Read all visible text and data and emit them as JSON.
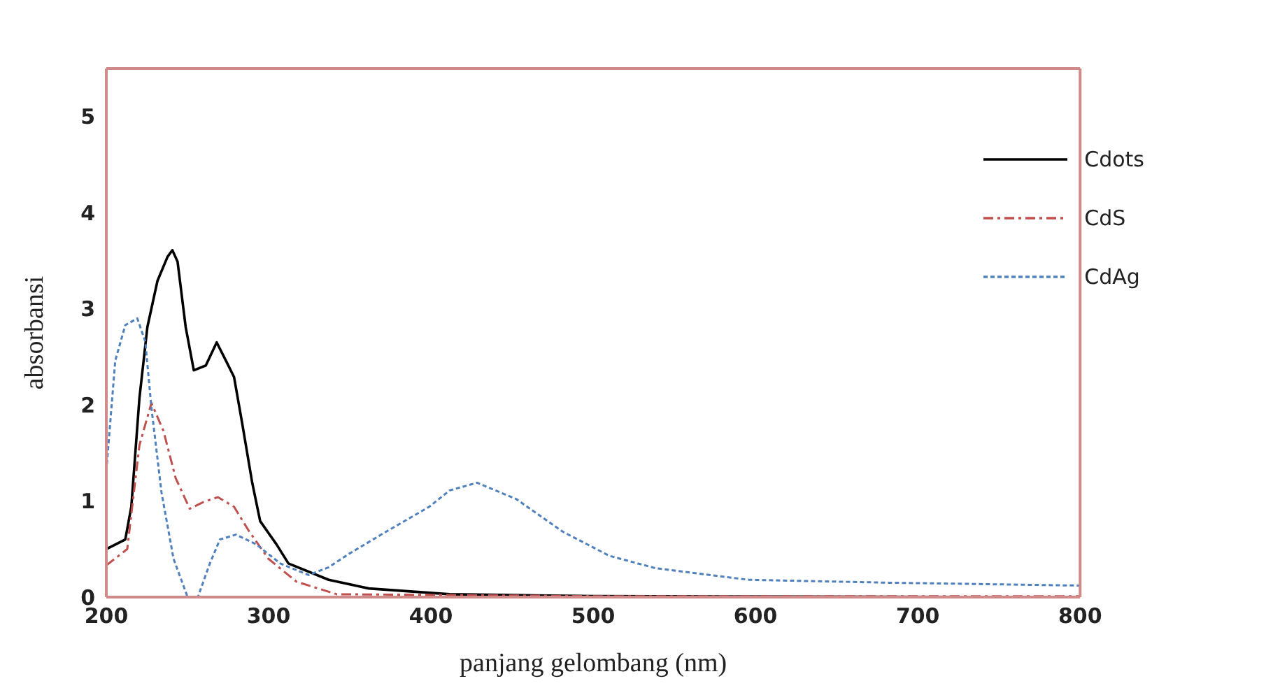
{
  "chart_data": {
    "type": "line",
    "xlabel": "panjang gelombang (nm)",
    "ylabel": "absorbansi",
    "xlim": [
      200,
      800
    ],
    "xticks": [
      200,
      300,
      400,
      500,
      600,
      700,
      800
    ],
    "ylim": [
      0,
      5.5
    ],
    "yticks": [
      0,
      1,
      2,
      3,
      4,
      5
    ],
    "legend": "top right",
    "marker": "none",
    "series": [
      {
        "name": "Cdots",
        "color": "#000000",
        "line_style": "solid",
        "x": [
          200,
          211.7,
          215.4,
          220.4,
          225.3,
          231.5,
          237.7,
          240.7,
          243.9,
          248.9,
          253.9,
          261.3,
          268,
          273.7,
          278.7,
          283.6,
          289.9,
          294.8,
          304.8,
          312.2,
          337,
          361.7,
          411.5,
          500,
          800
        ],
        "values": [
          0.5,
          0.6,
          0.94,
          2.07,
          2.81,
          3.29,
          3.54,
          3.61,
          3.49,
          2.81,
          2.36,
          2.41,
          2.65,
          2.46,
          2.29,
          1.82,
          1.19,
          0.79,
          0.55,
          0.35,
          0.18,
          0.09,
          0.03,
          0.01,
          0
        ]
      },
      {
        "name": "CdS",
        "color": "#c0504d",
        "line_style": "dashed",
        "x": [
          200,
          212.9,
          220.4,
          227.8,
          235.2,
          242.7,
          251.4,
          260,
          268.7,
          278.7,
          287.4,
          299.8,
          317.2,
          342,
          500,
          800
        ],
        "values": [
          0.33,
          0.5,
          1.58,
          2.02,
          1.73,
          1.24,
          0.92,
          0.99,
          1.04,
          0.94,
          0.7,
          0.4,
          0.16,
          0.03,
          0.01,
          0.01
        ]
      },
      {
        "name": "CdAg",
        "color": "#4f81bd",
        "line_style": "dotted",
        "x": [
          200,
          205.5,
          211.7,
          219.1,
          224,
          227.8,
          234,
          241.4,
          250.1,
          256.4,
          263.8,
          270,
          279.9,
          292.3,
          307.2,
          324.6,
          337,
          349.5,
          374.3,
          399,
          411.5,
          428.4,
          452.6,
          481.3,
          509.9,
          538.6,
          595.9,
          681.9,
          800
        ],
        "values": [
          1.31,
          2.46,
          2.83,
          2.9,
          2.66,
          1.97,
          1.09,
          0.4,
          0,
          0,
          0.35,
          0.6,
          0.65,
          0.55,
          0.35,
          0.23,
          0.31,
          0.45,
          0.7,
          0.94,
          1.11,
          1.19,
          1.02,
          0.68,
          0.43,
          0.3,
          0.18,
          0.15,
          0.12
        ]
      }
    ]
  }
}
